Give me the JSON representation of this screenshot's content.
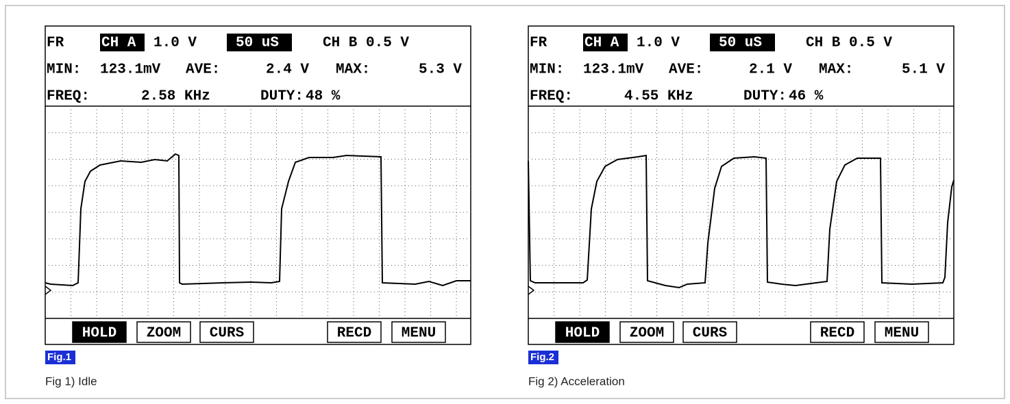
{
  "panels": [
    {
      "header": {
        "mode": "FR",
        "ch_a": "CH A",
        "ch_a_scale": "1.0 V",
        "timebase": "50 uS",
        "ch_b": "CH B 0.5 V",
        "min_label": "MIN:",
        "min": "123.1mV",
        "ave_label": "AVE:",
        "ave": "2.4 V",
        "max_label": "MAX:",
        "max": "5.3 V",
        "freq_label": "FREQ:",
        "freq": "2.58 KHz",
        "duty_label": "DUTY:",
        "duty": "48 %"
      },
      "buttons": [
        "HOLD",
        "ZOOM",
        "CURS",
        "RECD",
        "MENU"
      ],
      "fig": "Fig.1",
      "caption": "Fig 1) Idle"
    },
    {
      "header": {
        "mode": "FR",
        "ch_a": "CH A",
        "ch_a_scale": "1.0 V",
        "timebase": "50 uS",
        "ch_b": "CH B 0.5 V",
        "min_label": "MIN:",
        "min": "123.1mV",
        "ave_label": "AVE:",
        "ave": "2.1 V",
        "max_label": "MAX:",
        "max": "5.1 V",
        "freq_label": "FREQ:",
        "freq": "4.55 KHz",
        "duty_label": "DUTY:",
        "duty": "46 %"
      },
      "buttons": [
        "HOLD",
        "ZOOM",
        "CURS",
        "RECD",
        "MENU"
      ],
      "fig": "Fig.2",
      "caption": "Fig 2) Acceleration"
    }
  ]
}
